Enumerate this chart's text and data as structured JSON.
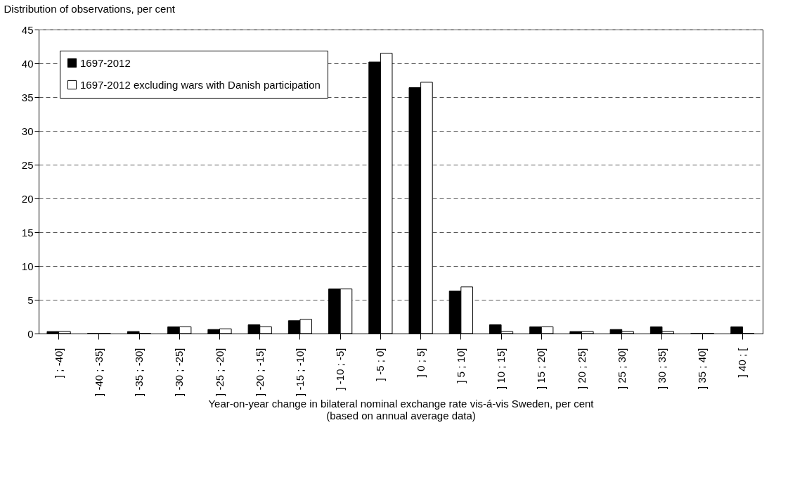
{
  "chart_data": {
    "type": "bar",
    "ylabel": "Distribution of observations, per cent",
    "xlabel": "Year-on-year change in bilateral nominal exchange rate vis-á-vis Sweden, per cent",
    "annotations": [
      "(based on annual average data)"
    ],
    "categories": [
      "]    ; -40]",
      "] -40 ; -35]",
      "] -35 ; -30]",
      "] -30 ; -25]",
      "] -25 ; -20]",
      "] -20 ; -15]",
      "] -15 ; -10]",
      "] -10 ;  -5]",
      "] -5 ;   0]",
      "]  0 ;   5]",
      "]  5 ;  10]",
      "] 10 ;  15]",
      "] 15 ;  20]",
      "] 20 ;  25]",
      "] 25 ;  30]",
      "] 30 ;  35]",
      "] 35 ;  40]",
      "] 40 ;   ["
    ],
    "series": [
      {
        "name": "1697-2012",
        "color": "#000000",
        "values": [
          0.3,
          0,
          0.3,
          1.0,
          0.6,
          1.3,
          1.9,
          6.6,
          40.2,
          36.4,
          6.3,
          1.3,
          1.0,
          0.3,
          0.6,
          1.0,
          0,
          1.0
        ]
      },
      {
        "name": "1697-2012 excluding wars with Danish participation",
        "color": "#ffffff",
        "values": [
          0.3,
          0,
          0,
          1.0,
          0.7,
          1.0,
          2.1,
          6.6,
          41.5,
          37.2,
          6.9,
          0.3,
          1.0,
          0.3,
          0.3,
          0.3,
          0,
          0
        ]
      }
    ],
    "ylim": [
      0,
      45
    ],
    "yticks": [
      0,
      5,
      10,
      15,
      20,
      25,
      30,
      35,
      40,
      45
    ],
    "grid": "y",
    "legend": "top left"
  }
}
